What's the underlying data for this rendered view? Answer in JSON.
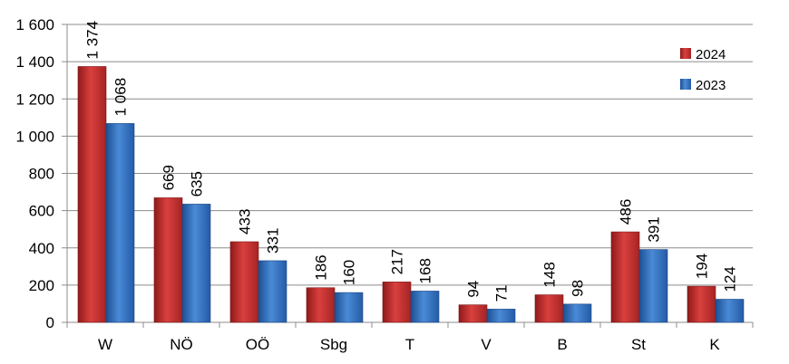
{
  "chart_data": {
    "type": "bar",
    "categories": [
      "W",
      "NÖ",
      "OÖ",
      "Sbg",
      "T",
      "V",
      "B",
      "St",
      "K"
    ],
    "series": [
      {
        "name": "2024",
        "color": "#c0302f",
        "values": [
          1374,
          669,
          433,
          186,
          217,
          94,
          148,
          486,
          194
        ],
        "labels": [
          "1 374",
          "669",
          "433",
          "186",
          "217",
          "94",
          "148",
          "486",
          "194"
        ]
      },
      {
        "name": "2023",
        "color": "#2f6fbf",
        "values": [
          1068,
          635,
          331,
          160,
          168,
          71,
          98,
          391,
          124
        ],
        "labels": [
          "1 068",
          "635",
          "331",
          "160",
          "168",
          "71",
          "98",
          "391",
          "124"
        ]
      }
    ],
    "ylim": [
      0,
      1600
    ],
    "yticks": [
      0,
      200,
      400,
      600,
      800,
      1000,
      1200,
      1400,
      1600
    ],
    "ytick_labels": [
      "0",
      "200",
      "400",
      "600",
      "800",
      "1 000",
      "1 200",
      "1 400",
      "1 600"
    ],
    "grid": true,
    "legend_position": "top-right",
    "title": "",
    "xlabel": "",
    "ylabel": ""
  }
}
